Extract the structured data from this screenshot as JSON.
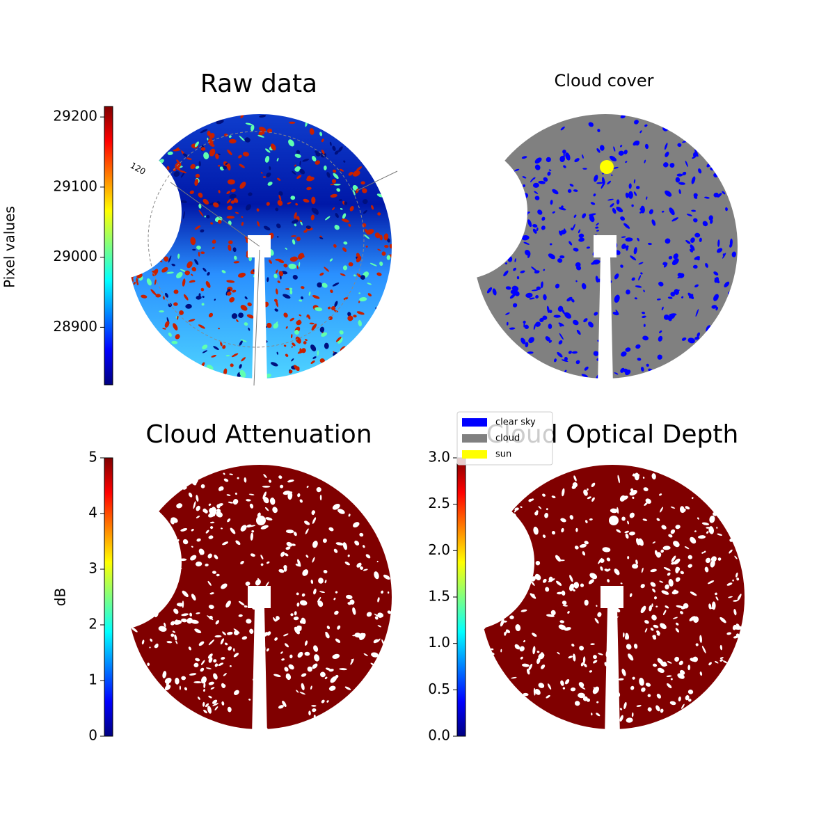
{
  "chart_data": [
    {
      "type": "image",
      "title": "Raw data",
      "colormap": "jet",
      "annotations": [
        "120"
      ],
      "colorbar": {
        "label": "Pixel values",
        "lim": [
          28818,
          29215
        ],
        "ticks": [
          28900,
          29000,
          29100,
          29200
        ]
      }
    },
    {
      "type": "image",
      "title": "Cloud cover",
      "legend": [
        {
          "name": "clear sky",
          "color": "#0000ff"
        },
        {
          "name": "cloud",
          "color": "#808080"
        },
        {
          "name": "sun",
          "color": "#ffff00"
        }
      ]
    },
    {
      "type": "image",
      "title": "Cloud Attenuation",
      "colormap": "jet",
      "colorbar": {
        "label": "dB",
        "lim": [
          0,
          5
        ],
        "ticks": [
          0,
          1,
          2,
          3,
          4,
          5
        ]
      }
    },
    {
      "type": "image",
      "title": "Cloud Optical Depth",
      "colormap": "jet",
      "colorbar": {
        "lim": [
          0,
          3
        ],
        "ticks": [
          {
            "value": 0,
            "label": "0.0"
          },
          {
            "value": 0.5,
            "label": "0.5"
          },
          {
            "value": 1,
            "label": "1.0"
          },
          {
            "value": 1.5,
            "label": "1.5"
          },
          {
            "value": 2,
            "label": "2.0"
          },
          {
            "value": 2.5,
            "label": "2.5"
          },
          {
            "value": 3,
            "label": "3.0"
          }
        ]
      }
    }
  ]
}
